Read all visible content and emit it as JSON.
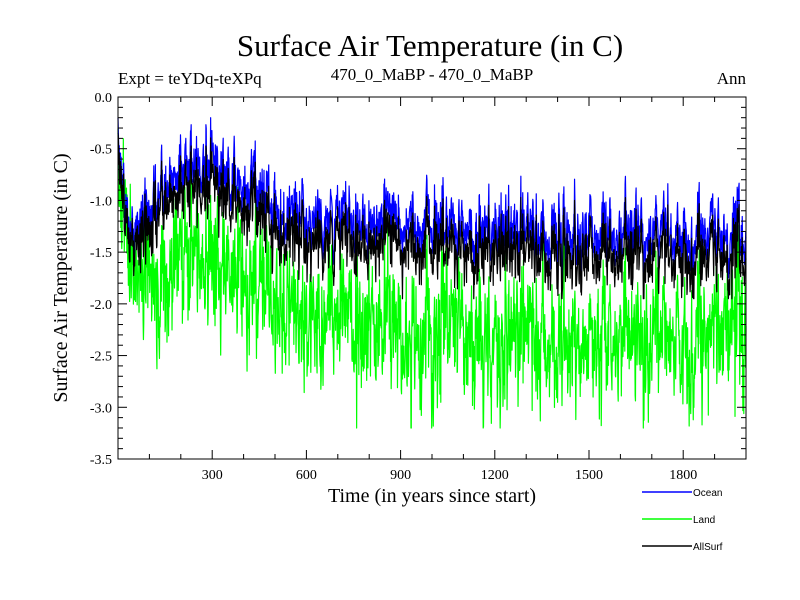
{
  "chart_data": {
    "type": "line",
    "title": "Surface Air Temperature (in C)",
    "experiment_label": "Expt = teYDq-teXPq",
    "period_label": "470_0_MaBP - 470_0_MaBP",
    "season_label": "Ann",
    "xlabel": "Time (in years since start)",
    "ylabel": "Surface Air Temperature (in C)",
    "xlim": [
      0,
      2000
    ],
    "ylim": [
      -3.5,
      0.0
    ],
    "x_ticks": [
      300,
      600,
      900,
      1200,
      1500,
      1800
    ],
    "y_ticks": [
      0.0,
      -0.5,
      -1.0,
      -1.5,
      -2.0,
      -2.5,
      -3.0,
      -3.5
    ],
    "y_tick_labels": [
      "0.0",
      "-0.5",
      "-1.0",
      "-1.5",
      "-2.0",
      "-2.5",
      "-3.0",
      "-3.5"
    ],
    "series": [
      {
        "name": "Land",
        "color": "#00ff00",
        "anchors": {
          "x": [
            0,
            15,
            40,
            80,
            150,
            200,
            250,
            300,
            350,
            400,
            450,
            500,
            600,
            700,
            800,
            900,
            1000,
            1100,
            1200,
            1300,
            1400,
            1500,
            1600,
            1700,
            1800,
            1900,
            2000
          ],
          "y": [
            -0.3,
            -1.2,
            -1.7,
            -1.8,
            -1.7,
            -1.5,
            -1.6,
            -1.55,
            -1.6,
            -1.7,
            -1.75,
            -2.0,
            -2.1,
            -2.2,
            -2.15,
            -2.2,
            -2.25,
            -2.3,
            -2.35,
            -2.3,
            -2.4,
            -2.35,
            -2.3,
            -2.35,
            -2.4,
            -2.35,
            -2.2
          ]
        },
        "noise_sd": 0.33,
        "observed_min": -3.2,
        "observed_max": -0.3
      },
      {
        "name": "Ocean",
        "color": "#0000ff",
        "anchors": {
          "x": [
            0,
            15,
            40,
            80,
            150,
            200,
            250,
            300,
            350,
            400,
            450,
            500,
            600,
            700,
            800,
            900,
            1000,
            1100,
            1200,
            1300,
            1400,
            1500,
            1600,
            1700,
            1800,
            1900,
            2000
          ],
          "y": [
            -0.2,
            -0.9,
            -1.35,
            -1.2,
            -0.9,
            -0.65,
            -0.7,
            -0.55,
            -0.75,
            -0.85,
            -0.85,
            -1.1,
            -1.15,
            -1.2,
            -1.15,
            -1.2,
            -1.2,
            -1.3,
            -1.25,
            -1.3,
            -1.3,
            -1.3,
            -1.3,
            -1.3,
            -1.35,
            -1.35,
            -1.4
          ]
        },
        "noise_sd": 0.18,
        "observed_min": -1.75,
        "observed_max": -0.2
      },
      {
        "name": "AllSurf",
        "color": "#000000",
        "anchors": {
          "x": [
            0,
            15,
            40,
            80,
            150,
            200,
            250,
            300,
            350,
            400,
            450,
            500,
            600,
            700,
            800,
            900,
            1000,
            1100,
            1200,
            1300,
            1400,
            1500,
            1600,
            1700,
            1800,
            1900,
            2000
          ],
          "y": [
            -0.25,
            -1.0,
            -1.45,
            -1.35,
            -1.05,
            -0.85,
            -0.9,
            -0.75,
            -0.95,
            -1.05,
            -1.05,
            -1.3,
            -1.35,
            -1.4,
            -1.35,
            -1.4,
            -1.4,
            -1.5,
            -1.45,
            -1.5,
            -1.5,
            -1.5,
            -1.5,
            -1.5,
            -1.55,
            -1.55,
            -1.6
          ]
        },
        "noise_sd": 0.18,
        "observed_min": -1.95,
        "observed_max": -0.35
      }
    ],
    "legend": [
      {
        "name": "Ocean",
        "color": "#0000ff"
      },
      {
        "name": "Land",
        "color": "#00ff00"
      },
      {
        "name": "AllSurf",
        "color": "#000000"
      }
    ],
    "legend_placement": "bottom-right"
  }
}
